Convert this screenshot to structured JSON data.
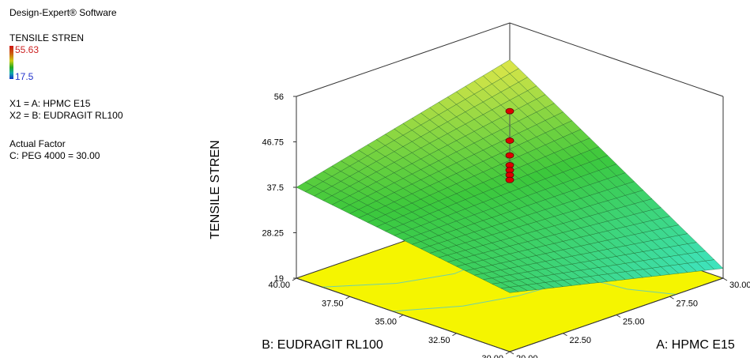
{
  "software": "Design-Expert® Software",
  "response": {
    "name": "TENSILE STREN",
    "max_label": "55.63",
    "min_label": "17.5",
    "max_color": "#cc2222",
    "min_color": "#2233cc"
  },
  "factors": {
    "x1": "X1 = A: HPMC E15",
    "x2": "X2 = B: EUDRAGIT RL100"
  },
  "actual_factor": {
    "heading": "Actual Factor",
    "value": "C: PEG 4000 = 30.00"
  },
  "chart_data": {
    "type": "surface3d",
    "zlabel": "TENSILE STREN",
    "xlabel": "A: HPMC E15",
    "ylabel": "B: EUDRAGIT RL100",
    "x_ticks": [
      "20.00",
      "22.50",
      "25.00",
      "27.50",
      "30.00"
    ],
    "y_ticks": [
      "30.00",
      "32.50",
      "35.00",
      "37.50",
      "40.00"
    ],
    "z_ticks": [
      "19",
      "28.25",
      "37.5",
      "46.75",
      "56"
    ],
    "xlim": [
      20,
      30
    ],
    "ylim": [
      30,
      40
    ],
    "zlim": [
      19,
      56
    ],
    "surface_corners": {
      "A20_B30": 31,
      "A30_B30": 21,
      "A20_B40": 37.5,
      "A30_B40": 48.5
    },
    "design_points_z": [
      53,
      47,
      44,
      42,
      41,
      40,
      39
    ],
    "colors": {
      "floor": "#f5f500",
      "surface_low": "#3ee6cc",
      "surface_high": "#e8e84a",
      "points": "#dd0000"
    }
  }
}
